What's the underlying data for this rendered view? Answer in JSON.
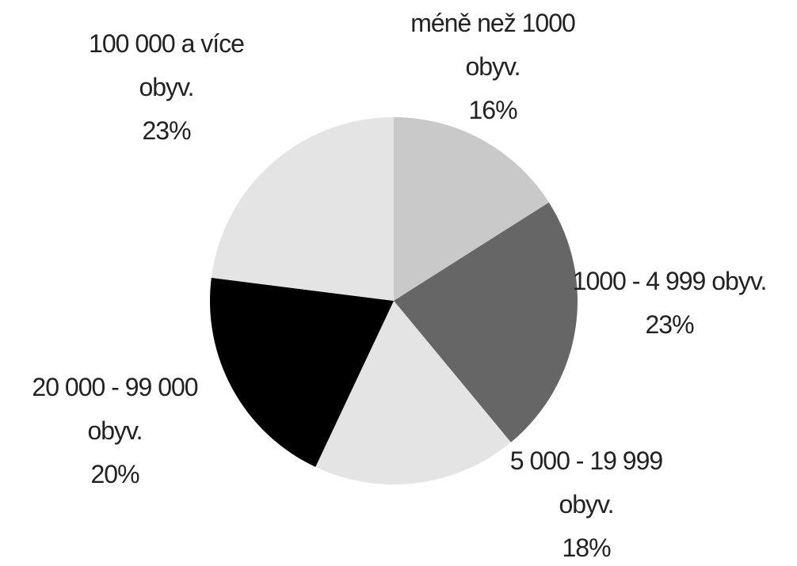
{
  "chart_data": {
    "type": "pie",
    "categories": [
      "méně než 1000 obyv.",
      "1000 - 4 999 obyv.",
      "5 000 - 19 999 obyv.",
      "20 000 - 99 000 obyv.",
      "100 000 a více obyv."
    ],
    "values": [
      16,
      23,
      18,
      20,
      23
    ],
    "value_labels": [
      "16%",
      "23%",
      "18%",
      "20%",
      "23%"
    ],
    "colors": [
      "#c9c9c9",
      "#666666",
      "#e4e4e4",
      "#000000",
      "#e4e4e4"
    ]
  }
}
